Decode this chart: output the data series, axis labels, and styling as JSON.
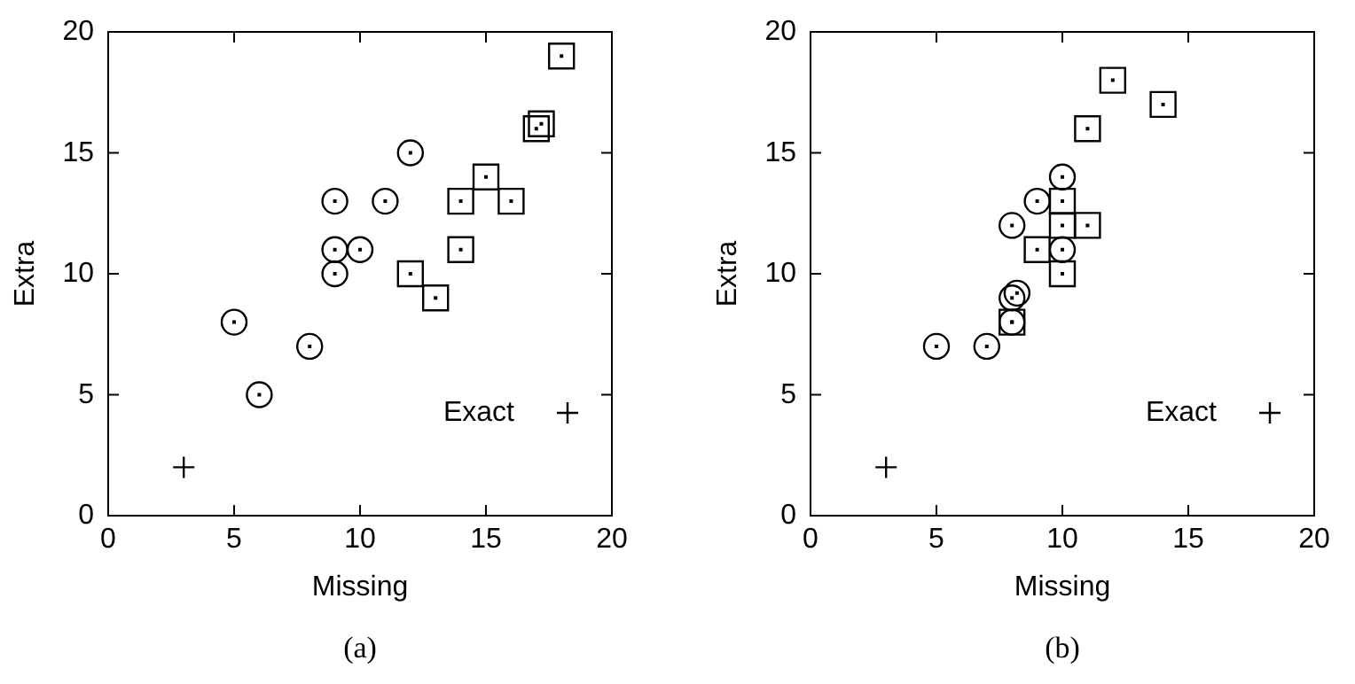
{
  "chart_data": [
    {
      "type": "scatter",
      "xlabel": "Missing",
      "ylabel": "Extra",
      "annotations": [
        "(a)"
      ],
      "xlim": [
        0,
        20
      ],
      "ylim": [
        0,
        20
      ],
      "xticks": [
        0,
        5,
        10,
        15,
        20
      ],
      "yticks": [
        0,
        5,
        10,
        15,
        20
      ],
      "grid": false,
      "legend": "bottom right",
      "series": [
        {
          "name": "Exact",
          "color": "#000000",
          "marker": "cross",
          "x": [
            3
          ],
          "values": [
            2
          ]
        },
        {
          "color": "#000000",
          "marker": "square",
          "x": [
            18,
            17,
            17.2,
            15,
            14,
            16,
            14,
            12,
            13
          ],
          "values": [
            19,
            16,
            16.2,
            14,
            13,
            13,
            11,
            10,
            9
          ]
        },
        {
          "color": "#000000",
          "marker": "circle",
          "x": [
            12,
            9,
            11,
            9,
            10,
            9,
            5,
            8,
            6
          ],
          "values": [
            15,
            13,
            13,
            11,
            11,
            10,
            8,
            7,
            5
          ]
        }
      ]
    },
    {
      "type": "scatter",
      "xlabel": "Missing",
      "ylabel": "Extra",
      "annotations": [
        "(b)"
      ],
      "xlim": [
        0,
        20
      ],
      "ylim": [
        0,
        20
      ],
      "xticks": [
        0,
        5,
        10,
        15,
        20
      ],
      "yticks": [
        0,
        5,
        10,
        15,
        20
      ],
      "grid": false,
      "legend": "bottom right",
      "series": [
        {
          "name": "Exact",
          "color": "#000000",
          "marker": "cross",
          "x": [
            3
          ],
          "values": [
            2
          ]
        },
        {
          "color": "#000000",
          "marker": "square",
          "x": [
            12,
            14,
            11,
            10,
            10,
            11,
            9,
            10,
            8
          ],
          "values": [
            18,
            17,
            16,
            13,
            12,
            12,
            11,
            10,
            8
          ]
        },
        {
          "color": "#000000",
          "marker": "circle",
          "x": [
            10,
            9,
            8,
            10,
            8.2,
            8,
            8,
            7,
            5
          ],
          "values": [
            14,
            13,
            12,
            11,
            9.2,
            9,
            8,
            7,
            7
          ]
        }
      ]
    }
  ]
}
